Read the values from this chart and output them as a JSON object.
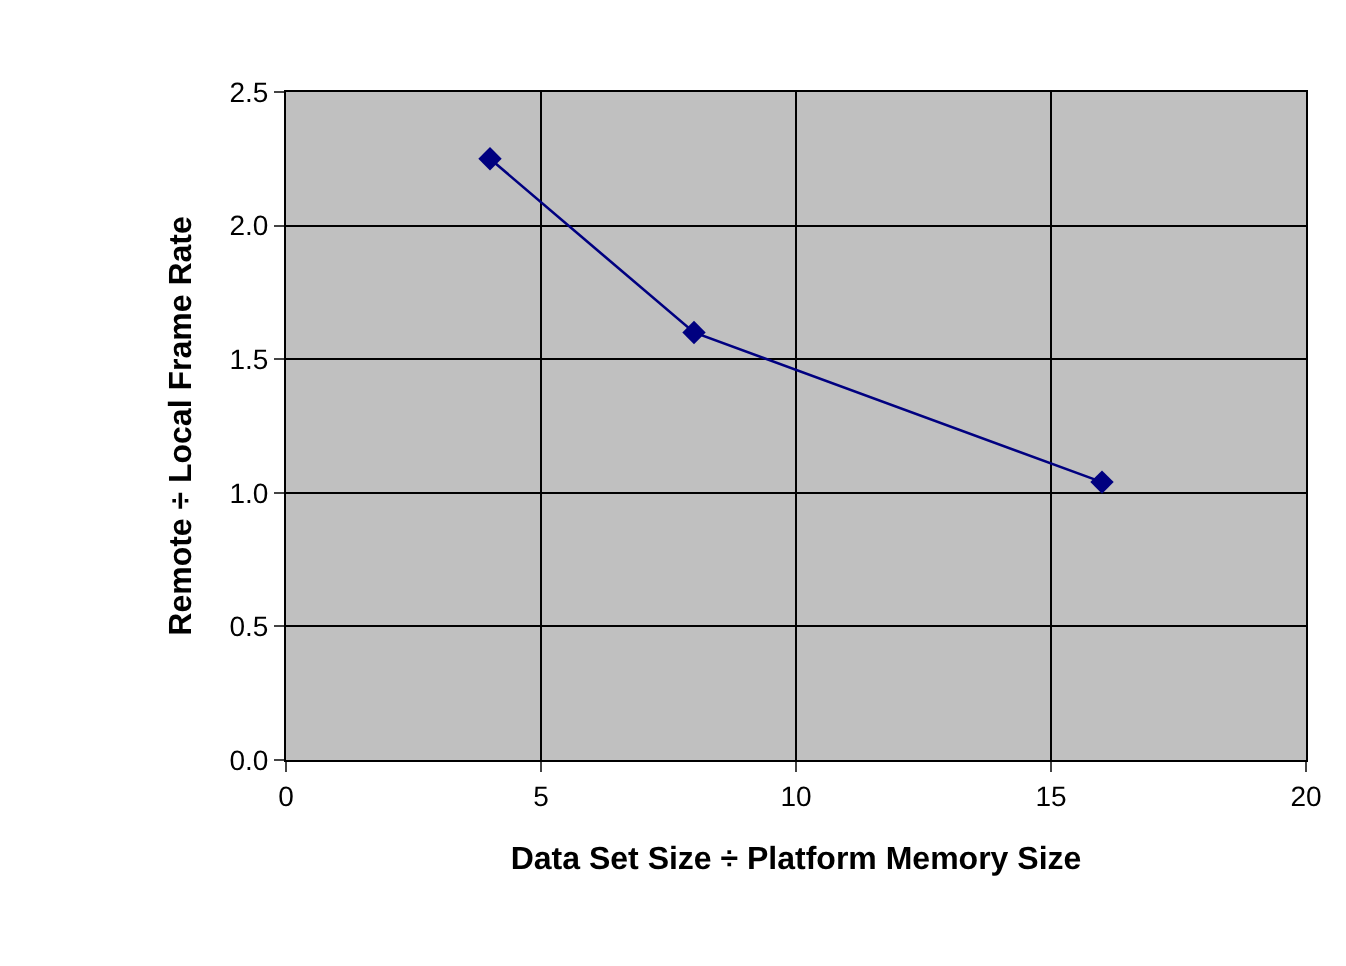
{
  "chart_data": {
    "type": "line",
    "xlabel": "Data Set Size ÷ Platform Memory Size",
    "ylabel": "Remote ÷ Local Frame Rate",
    "x": [
      4,
      8,
      16
    ],
    "series": [
      {
        "color": "#000080",
        "values": [
          2.25,
          1.6,
          1.04
        ]
      }
    ],
    "xlim": [
      0,
      20
    ],
    "xticks": [
      0,
      5,
      10,
      15,
      20
    ],
    "ylim": [
      0,
      2.5
    ],
    "yticks": [
      {
        "value": 0,
        "label": "0.0"
      },
      {
        "value": 0.5,
        "label": "0.5"
      },
      {
        "value": 1,
        "label": "1.0"
      },
      {
        "value": 1.5,
        "label": "1.5"
      },
      {
        "value": 2,
        "label": "2.0"
      },
      {
        "value": 2.5,
        "label": "2.5"
      }
    ],
    "grid": true,
    "marker": "diamond",
    "line_style": "solid"
  }
}
